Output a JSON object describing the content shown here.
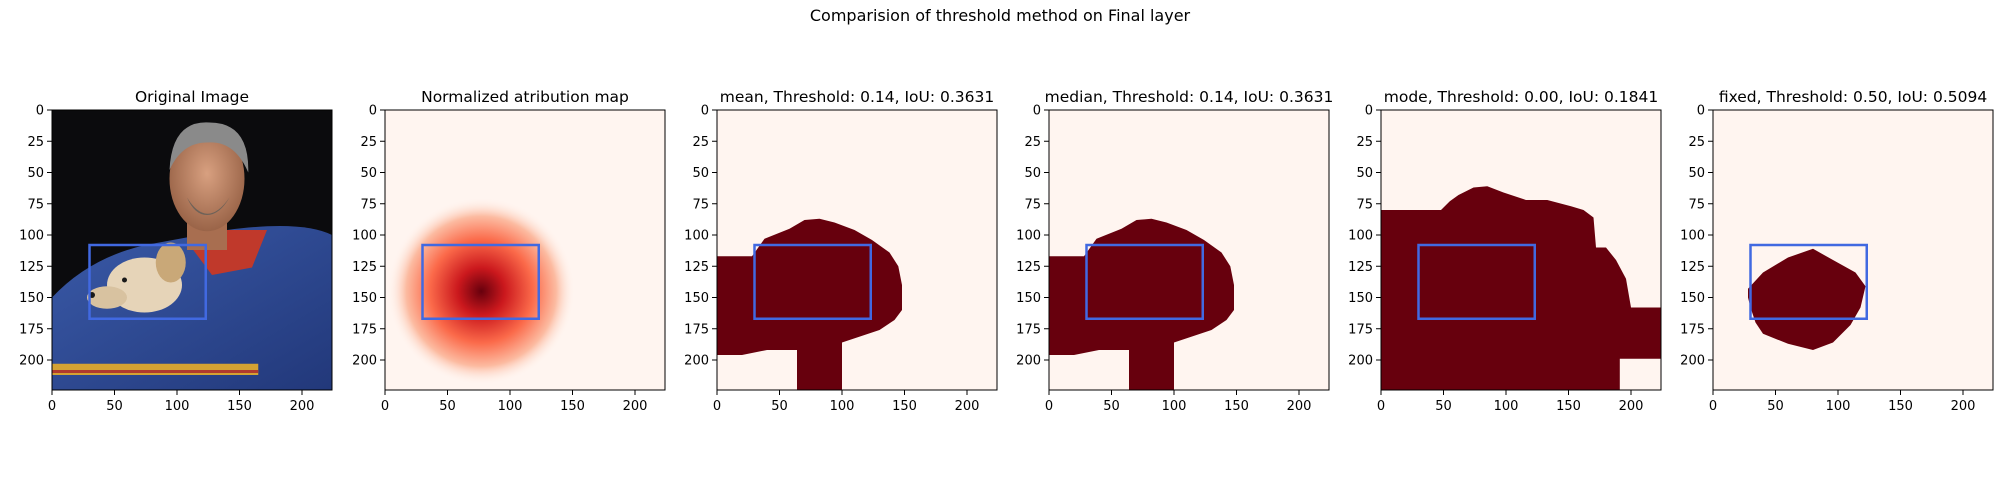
{
  "figure": {
    "title": "Comparision of threshold method on Final layer"
  },
  "colors": {
    "box": "#4169e1",
    "mask_fill": "#67000d",
    "background_fill": "#fff5f0",
    "heat_peak": "#67000d",
    "heat_mid": "#ef3b2c",
    "heat_low": "#fcbba1"
  },
  "chart_data": [
    {
      "type": "heatmap",
      "image": "photo",
      "title": "Original Image",
      "xlim": [
        0,
        224
      ],
      "ylim": [
        224,
        0
      ],
      "x_ticks": [
        0,
        50,
        100,
        150,
        200
      ],
      "y_ticks": [
        0,
        25,
        50,
        75,
        100,
        125,
        150,
        175,
        200
      ],
      "box": {
        "x0": 30,
        "y0": 108,
        "x1": 123,
        "y1": 167
      }
    },
    {
      "type": "heatmap",
      "image": "attribution",
      "title": "Normalized atribution map",
      "xlim": [
        0,
        224
      ],
      "ylim": [
        224,
        0
      ],
      "x_ticks": [
        0,
        50,
        100,
        150,
        200
      ],
      "y_ticks": [
        0,
        25,
        50,
        75,
        100,
        125,
        150,
        175,
        200
      ],
      "peak": {
        "x": 77,
        "y": 145
      },
      "box": {
        "x0": 30,
        "y0": 108,
        "x1": 123,
        "y1": 167
      }
    },
    {
      "type": "heatmap",
      "image": "mask",
      "method": "mean",
      "threshold": "0.14",
      "iou": "0.3631",
      "title": "mean, Threshold: 0.14, IoU: 0.3631",
      "xlim": [
        0,
        224
      ],
      "ylim": [
        224,
        0
      ],
      "x_ticks": [
        0,
        50,
        100,
        150,
        200
      ],
      "y_ticks": [
        0,
        25,
        50,
        75,
        100,
        125,
        150,
        175,
        200
      ],
      "mask_polygon": [
        [
          0,
          117
        ],
        [
          28,
          117
        ],
        [
          38,
          103
        ],
        [
          58,
          95
        ],
        [
          70,
          88
        ],
        [
          82,
          87
        ],
        [
          94,
          90
        ],
        [
          110,
          96
        ],
        [
          124,
          104
        ],
        [
          138,
          114
        ],
        [
          145,
          125
        ],
        [
          148,
          140
        ],
        [
          148,
          160
        ],
        [
          142,
          168
        ],
        [
          130,
          176
        ],
        [
          118,
          180
        ],
        [
          100,
          186
        ],
        [
          100,
          224
        ],
        [
          64,
          224
        ],
        [
          64,
          192
        ],
        [
          40,
          192
        ],
        [
          20,
          196
        ],
        [
          0,
          196
        ]
      ],
      "box": {
        "x0": 30,
        "y0": 108,
        "x1": 123,
        "y1": 167
      }
    },
    {
      "type": "heatmap",
      "image": "mask",
      "method": "median",
      "threshold": "0.14",
      "iou": "0.3631",
      "title": "median, Threshold: 0.14, IoU: 0.3631",
      "xlim": [
        0,
        224
      ],
      "ylim": [
        224,
        0
      ],
      "x_ticks": [
        0,
        50,
        100,
        150,
        200
      ],
      "y_ticks": [
        0,
        25,
        50,
        75,
        100,
        125,
        150,
        175,
        200
      ],
      "mask_polygon": [
        [
          0,
          117
        ],
        [
          28,
          117
        ],
        [
          38,
          103
        ],
        [
          58,
          95
        ],
        [
          70,
          88
        ],
        [
          82,
          87
        ],
        [
          94,
          90
        ],
        [
          110,
          96
        ],
        [
          124,
          104
        ],
        [
          138,
          114
        ],
        [
          145,
          125
        ],
        [
          148,
          140
        ],
        [
          148,
          160
        ],
        [
          142,
          168
        ],
        [
          130,
          176
        ],
        [
          118,
          180
        ],
        [
          100,
          186
        ],
        [
          100,
          224
        ],
        [
          64,
          224
        ],
        [
          64,
          192
        ],
        [
          40,
          192
        ],
        [
          20,
          196
        ],
        [
          0,
          196
        ]
      ],
      "box": {
        "x0": 30,
        "y0": 108,
        "x1": 123,
        "y1": 167
      }
    },
    {
      "type": "heatmap",
      "image": "mask",
      "method": "mode",
      "threshold": "0.00",
      "iou": "0.1841",
      "title": "mode, Threshold: 0.00, IoU: 0.1841",
      "xlim": [
        0,
        224
      ],
      "ylim": [
        224,
        0
      ],
      "x_ticks": [
        0,
        50,
        100,
        150,
        200
      ],
      "y_ticks": [
        0,
        25,
        50,
        75,
        100,
        125,
        150,
        175,
        200
      ],
      "mask_polygon": [
        [
          0,
          80
        ],
        [
          48,
          80
        ],
        [
          55,
          73
        ],
        [
          62,
          68
        ],
        [
          74,
          62
        ],
        [
          85,
          61
        ],
        [
          98,
          66
        ],
        [
          116,
          72
        ],
        [
          133,
          72
        ],
        [
          152,
          77
        ],
        [
          162,
          80
        ],
        [
          170,
          86
        ],
        [
          172,
          110
        ],
        [
          180,
          110
        ],
        [
          188,
          120
        ],
        [
          196,
          135
        ],
        [
          200,
          158
        ],
        [
          224,
          158
        ],
        [
          224,
          199
        ],
        [
          191,
          199
        ],
        [
          191,
          224
        ],
        [
          0,
          224
        ]
      ],
      "box": {
        "x0": 30,
        "y0": 108,
        "x1": 123,
        "y1": 167
      }
    },
    {
      "type": "heatmap",
      "image": "mask",
      "method": "fixed",
      "threshold": "0.50",
      "iou": "0.5094",
      "title": "fixed, Threshold: 0.50, IoU: 0.5094",
      "xlim": [
        0,
        224
      ],
      "ylim": [
        224,
        0
      ],
      "x_ticks": [
        0,
        50,
        100,
        150,
        200
      ],
      "y_ticks": [
        0,
        25,
        50,
        75,
        100,
        125,
        150,
        175,
        200
      ],
      "mask_polygon": [
        [
          28,
          143
        ],
        [
          40,
          130
        ],
        [
          60,
          118
        ],
        [
          80,
          111
        ],
        [
          96,
          120
        ],
        [
          114,
          130
        ],
        [
          122,
          141
        ],
        [
          118,
          158
        ],
        [
          110,
          172
        ],
        [
          96,
          186
        ],
        [
          80,
          192
        ],
        [
          60,
          187
        ],
        [
          40,
          179
        ],
        [
          34,
          170
        ],
        [
          30,
          158
        ],
        [
          28,
          150
        ]
      ],
      "box": {
        "x0": 30,
        "y0": 108,
        "x1": 123,
        "y1": 167
      }
    }
  ]
}
